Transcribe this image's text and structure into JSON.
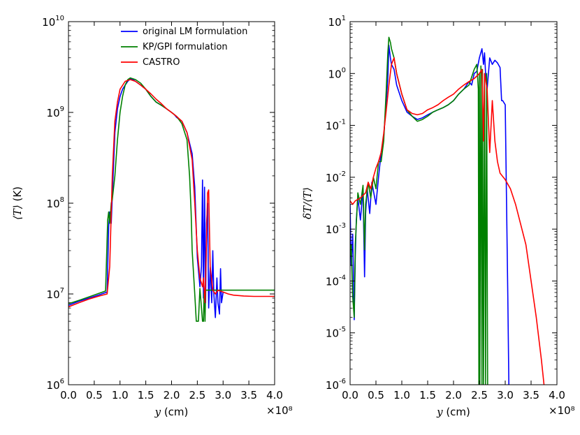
{
  "chart_data": [
    {
      "type": "line",
      "id": "left",
      "yscale": "log",
      "xlim": [
        0.0,
        4.0
      ],
      "ylim": [
        1000000,
        10000000000
      ],
      "xticks": [
        "0.0",
        "0.5",
        "1.0",
        "1.5",
        "2.0",
        "2.5",
        "3.0",
        "3.5",
        "4.0"
      ],
      "x_multiplier": "×10⁸",
      "yticks": [
        {
          "base": "10",
          "exp": "6",
          "value": 1000000
        },
        {
          "base": "10",
          "exp": "7",
          "value": 10000000
        },
        {
          "base": "10",
          "exp": "8",
          "value": 100000000
        },
        {
          "base": "10",
          "exp": "9",
          "value": 1000000000
        },
        {
          "base": "10",
          "exp": "10",
          "value": 10000000000
        }
      ],
      "xlabel": {
        "var": "y",
        "unit": " (cm)"
      },
      "ylabel": {
        "var": "⟨T⟩",
        "unit": " (K)"
      },
      "legend": {
        "placement": "top-right",
        "entries": [
          {
            "label": "original LM formulation",
            "color": "#0000ff"
          },
          {
            "label": "KP/GPI formulation",
            "color": "#008000"
          },
          {
            "label": "CASTRO",
            "color": "#ff0000"
          }
        ]
      },
      "series": [
        {
          "name": "original LM formulation",
          "color": "#0000ff",
          "x": [
            0.0,
            0.2,
            0.4,
            0.6,
            0.75,
            0.78,
            0.8,
            0.83,
            0.85,
            0.9,
            0.95,
            1.0,
            1.05,
            1.1,
            1.15,
            1.2,
            1.25,
            1.3,
            1.4,
            1.5,
            1.6,
            1.7,
            1.8,
            1.9,
            2.0,
            2.05,
            2.1,
            2.2,
            2.3,
            2.4,
            2.45,
            2.5,
            2.55,
            2.58,
            2.6,
            2.62,
            2.64,
            2.66,
            2.68,
            2.7,
            2.72,
            2.75,
            2.78,
            2.8,
            2.82,
            2.85,
            2.88,
            2.9,
            2.93,
            2.95,
            2.97,
            3.0
          ],
          "y": [
            7500000.0,
            8300000.0,
            9000000.0,
            9800000.0,
            10500000.0,
            55000000.0,
            80000000.0,
            60000000.0,
            120000000.0,
            600000000.0,
            1100000000.0,
            1500000000.0,
            1800000000.0,
            2000000000.0,
            2200000000.0,
            2350000000.0,
            2300000000.0,
            2200000000.0,
            2000000000.0,
            1800000000.0,
            1500000000.0,
            1300000000.0,
            1200000000.0,
            1100000000.0,
            1000000000.0,
            950000000.0,
            880000000.0,
            800000000.0,
            600000000.0,
            350000000.0,
            150000000.0,
            25000000.0,
            12000000.0,
            20000000.0,
            180000000.0,
            9000000.0,
            150000000.0,
            8000000.0,
            60000000.0,
            100000000.0,
            7000000.0,
            20000000.0,
            8000000.0,
            30000000.0,
            10000000.0,
            5500000.0,
            15000000.0,
            8000000.0,
            6000000.0,
            19000000.0,
            8000000.0,
            10500000.0
          ]
        },
        {
          "name": "KP/GPI formulation",
          "color": "#008000",
          "x": [
            0.0,
            0.2,
            0.4,
            0.6,
            0.72,
            0.76,
            0.78,
            0.8,
            0.83,
            0.85,
            0.9,
            0.95,
            1.0,
            1.05,
            1.1,
            1.15,
            1.2,
            1.3,
            1.4,
            1.5,
            1.6,
            1.7,
            1.8,
            1.9,
            2.0,
            2.1,
            2.2,
            2.3,
            2.35,
            2.38,
            2.4,
            2.45,
            2.48,
            2.5,
            2.52,
            2.55,
            2.6,
            2.62,
            2.63,
            2.64,
            2.65,
            2.66,
            2.7,
            3.0,
            4.0
          ],
          "y": [
            7800000.0,
            8500000.0,
            9300000.0,
            10200000.0,
            10800000.0,
            65000000.0,
            80000000.0,
            60000000.0,
            100000000.0,
            110000000.0,
            200000000.0,
            500000000.0,
            1000000000.0,
            1500000000.0,
            2000000000.0,
            2300000000.0,
            2400000000.0,
            2300000000.0,
            2100000000.0,
            1800000000.0,
            1500000000.0,
            1300000000.0,
            1200000000.0,
            1100000000.0,
            1000000000.0,
            900000000.0,
            750000000.0,
            500000000.0,
            200000000.0,
            80000000.0,
            30000000.0,
            10000000.0,
            5000000.0,
            5000000.0,
            5000000.0,
            11500000.0,
            5000000.0,
            5000000.0,
            10000000.0,
            11000000.0,
            5000000.0,
            11000000.0,
            11000000.0,
            11000000.0,
            11000000.0
          ]
        },
        {
          "name": "CASTRO",
          "color": "#ff0000",
          "x": [
            0.0,
            0.2,
            0.4,
            0.6,
            0.75,
            0.8,
            0.85,
            0.9,
            0.95,
            1.0,
            1.1,
            1.2,
            1.3,
            1.4,
            1.5,
            1.6,
            1.7,
            1.8,
            1.9,
            2.0,
            2.1,
            2.2,
            2.3,
            2.4,
            2.45,
            2.5,
            2.55,
            2.6,
            2.62,
            2.65,
            2.7,
            2.72,
            2.75,
            2.8,
            2.85,
            2.9,
            3.0,
            3.1,
            3.2,
            3.4,
            3.6,
            4.0
          ],
          "y": [
            7200000.0,
            8000000.0,
            8800000.0,
            9500000.0,
            10000000.0,
            20000000.0,
            200000000.0,
            800000000.0,
            1300000000.0,
            1800000000.0,
            2200000000.0,
            2300000000.0,
            2200000000.0,
            2000000000.0,
            1800000000.0,
            1600000000.0,
            1400000000.0,
            1250000000.0,
            1100000000.0,
            1000000000.0,
            900000000.0,
            800000000.0,
            600000000.0,
            300000000.0,
            100000000.0,
            30000000.0,
            15000000.0,
            12000000.0,
            15000000.0,
            8000000.0,
            130000000.0,
            140000000.0,
            20000000.0,
            11000000.0,
            10000000.0,
            11000000.0,
            10500000.0,
            10000000.0,
            9700000.0,
            9500000.0,
            9400000.0,
            9400000.0
          ]
        }
      ]
    },
    {
      "type": "line",
      "id": "right",
      "yscale": "log",
      "xlim": [
        0.0,
        4.0
      ],
      "ylim": [
        1e-06,
        10
      ],
      "xticks": [
        "0.0",
        "0.5",
        "1.0",
        "1.5",
        "2.0",
        "2.5",
        "3.0",
        "3.5",
        "4.0"
      ],
      "x_multiplier": "×10⁸",
      "yticks": [
        {
          "base": "10",
          "exp": "-6",
          "value": 1e-06
        },
        {
          "base": "10",
          "exp": "-5",
          "value": 1e-05
        },
        {
          "base": "10",
          "exp": "-4",
          "value": 0.0001
        },
        {
          "base": "10",
          "exp": "-3",
          "value": 0.001
        },
        {
          "base": "10",
          "exp": "-2",
          "value": 0.01
        },
        {
          "base": "10",
          "exp": "-1",
          "value": 0.1
        },
        {
          "base": "10",
          "exp": "0",
          "value": 1
        },
        {
          "base": "10",
          "exp": "1",
          "value": 10
        }
      ],
      "xlabel": {
        "var": "y",
        "unit": " (cm)"
      },
      "ylabel": {
        "var": "δT/⟨T⟩",
        "unit": ""
      },
      "series": [
        {
          "name": "original LM formulation",
          "color": "#0000ff",
          "x": [
            0.0,
            0.02,
            0.05,
            0.08,
            0.1,
            0.12,
            0.15,
            0.2,
            0.25,
            0.28,
            0.3,
            0.33,
            0.38,
            0.42,
            0.5,
            0.55,
            0.6,
            0.65,
            0.7,
            0.73,
            0.75,
            0.78,
            0.8,
            0.85,
            0.9,
            1.0,
            1.1,
            1.2,
            1.3,
            1.4,
            1.5,
            1.6,
            1.7,
            1.8,
            1.9,
            2.0,
            2.1,
            2.2,
            2.3,
            2.35,
            2.4,
            2.45,
            2.5,
            2.55,
            2.58,
            2.6,
            2.62,
            2.65,
            2.7,
            2.75,
            2.8,
            2.85,
            2.9,
            2.93,
            2.95,
            3.0,
            3.05,
            3.07
          ],
          "y": [
            0.003,
            0.0002,
            0.0008,
            1.8e-05,
            0.0003,
            0.0015,
            0.004,
            0.0015,
            0.006,
            0.00012,
            0.002,
            0.006,
            0.002,
            0.008,
            0.003,
            0.01,
            0.03,
            0.06,
            0.3,
            0.8,
            3.5,
            2.0,
            1.5,
            1.2,
            0.6,
            0.3,
            0.18,
            0.15,
            0.13,
            0.14,
            0.16,
            0.18,
            0.2,
            0.22,
            0.25,
            0.3,
            0.4,
            0.5,
            0.7,
            0.6,
            1.0,
            1.1,
            2.0,
            3.0,
            1.5,
            2.5,
            1.0,
            0.5,
            2.0,
            1.5,
            1.8,
            1.6,
            1.3,
            0.3,
            0.3,
            0.25,
            5e-05,
            1e-06
          ]
        },
        {
          "name": "KP/GPI formulation",
          "color": "#008000",
          "x": [
            0.0,
            0.02,
            0.05,
            0.08,
            0.1,
            0.15,
            0.2,
            0.25,
            0.28,
            0.3,
            0.35,
            0.4,
            0.45,
            0.5,
            0.55,
            0.6,
            0.65,
            0.7,
            0.73,
            0.75,
            0.78,
            0.8,
            0.85,
            0.9,
            1.0,
            1.1,
            1.2,
            1.3,
            1.4,
            1.5,
            1.6,
            1.7,
            1.8,
            1.9,
            2.0,
            2.1,
            2.2,
            2.3,
            2.4,
            2.45,
            2.48,
            2.49,
            2.5,
            2.51,
            2.53,
            2.55,
            2.56,
            2.58,
            2.6,
            2.62,
            2.64,
            2.66
          ],
          "y": [
            0.0003,
            0.0005,
            5e-05,
            2e-05,
            0.0005,
            0.005,
            0.003,
            0.007,
            0.0004,
            0.003,
            0.008,
            0.004,
            0.01,
            0.006,
            0.02,
            0.02,
            0.05,
            0.5,
            2.5,
            5.0,
            4.0,
            3.0,
            2.0,
            1.0,
            0.4,
            0.2,
            0.15,
            0.12,
            0.13,
            0.15,
            0.18,
            0.2,
            0.22,
            0.25,
            0.3,
            0.4,
            0.5,
            0.6,
            1.2,
            1.5,
            0.5,
            1e-06,
            1.0,
            1e-06,
            1.4,
            1e-06,
            1.2,
            1e-06,
            1.0,
            1e-06,
            1.0,
            1e-06
          ]
        },
        {
          "name": "CASTRO",
          "color": "#ff0000",
          "x": [
            0.0,
            0.05,
            0.1,
            0.2,
            0.3,
            0.35,
            0.4,
            0.45,
            0.5,
            0.55,
            0.6,
            0.65,
            0.7,
            0.75,
            0.8,
            0.85,
            0.9,
            1.0,
            1.1,
            1.2,
            1.3,
            1.4,
            1.5,
            1.6,
            1.7,
            1.8,
            1.9,
            2.0,
            2.1,
            2.2,
            2.3,
            2.4,
            2.5,
            2.55,
            2.58,
            2.6,
            2.65,
            2.7,
            2.75,
            2.8,
            2.85,
            2.9,
            3.0,
            3.1,
            3.2,
            3.4,
            3.5,
            3.6,
            3.7,
            3.75
          ],
          "y": [
            0.0035,
            0.003,
            0.0035,
            0.004,
            0.005,
            0.008,
            0.006,
            0.01,
            0.015,
            0.02,
            0.03,
            0.07,
            0.2,
            0.6,
            1.5,
            2.0,
            1.0,
            0.4,
            0.2,
            0.17,
            0.16,
            0.17,
            0.2,
            0.22,
            0.25,
            0.3,
            0.35,
            0.4,
            0.5,
            0.6,
            0.7,
            0.8,
            1.0,
            1.2,
            0.05,
            1.0,
            0.5,
            0.03,
            0.3,
            0.05,
            0.02,
            0.012,
            0.009,
            0.006,
            0.003,
            0.0005,
            0.0001,
            2e-05,
            3e-06,
            1e-06
          ]
        }
      ]
    }
  ]
}
